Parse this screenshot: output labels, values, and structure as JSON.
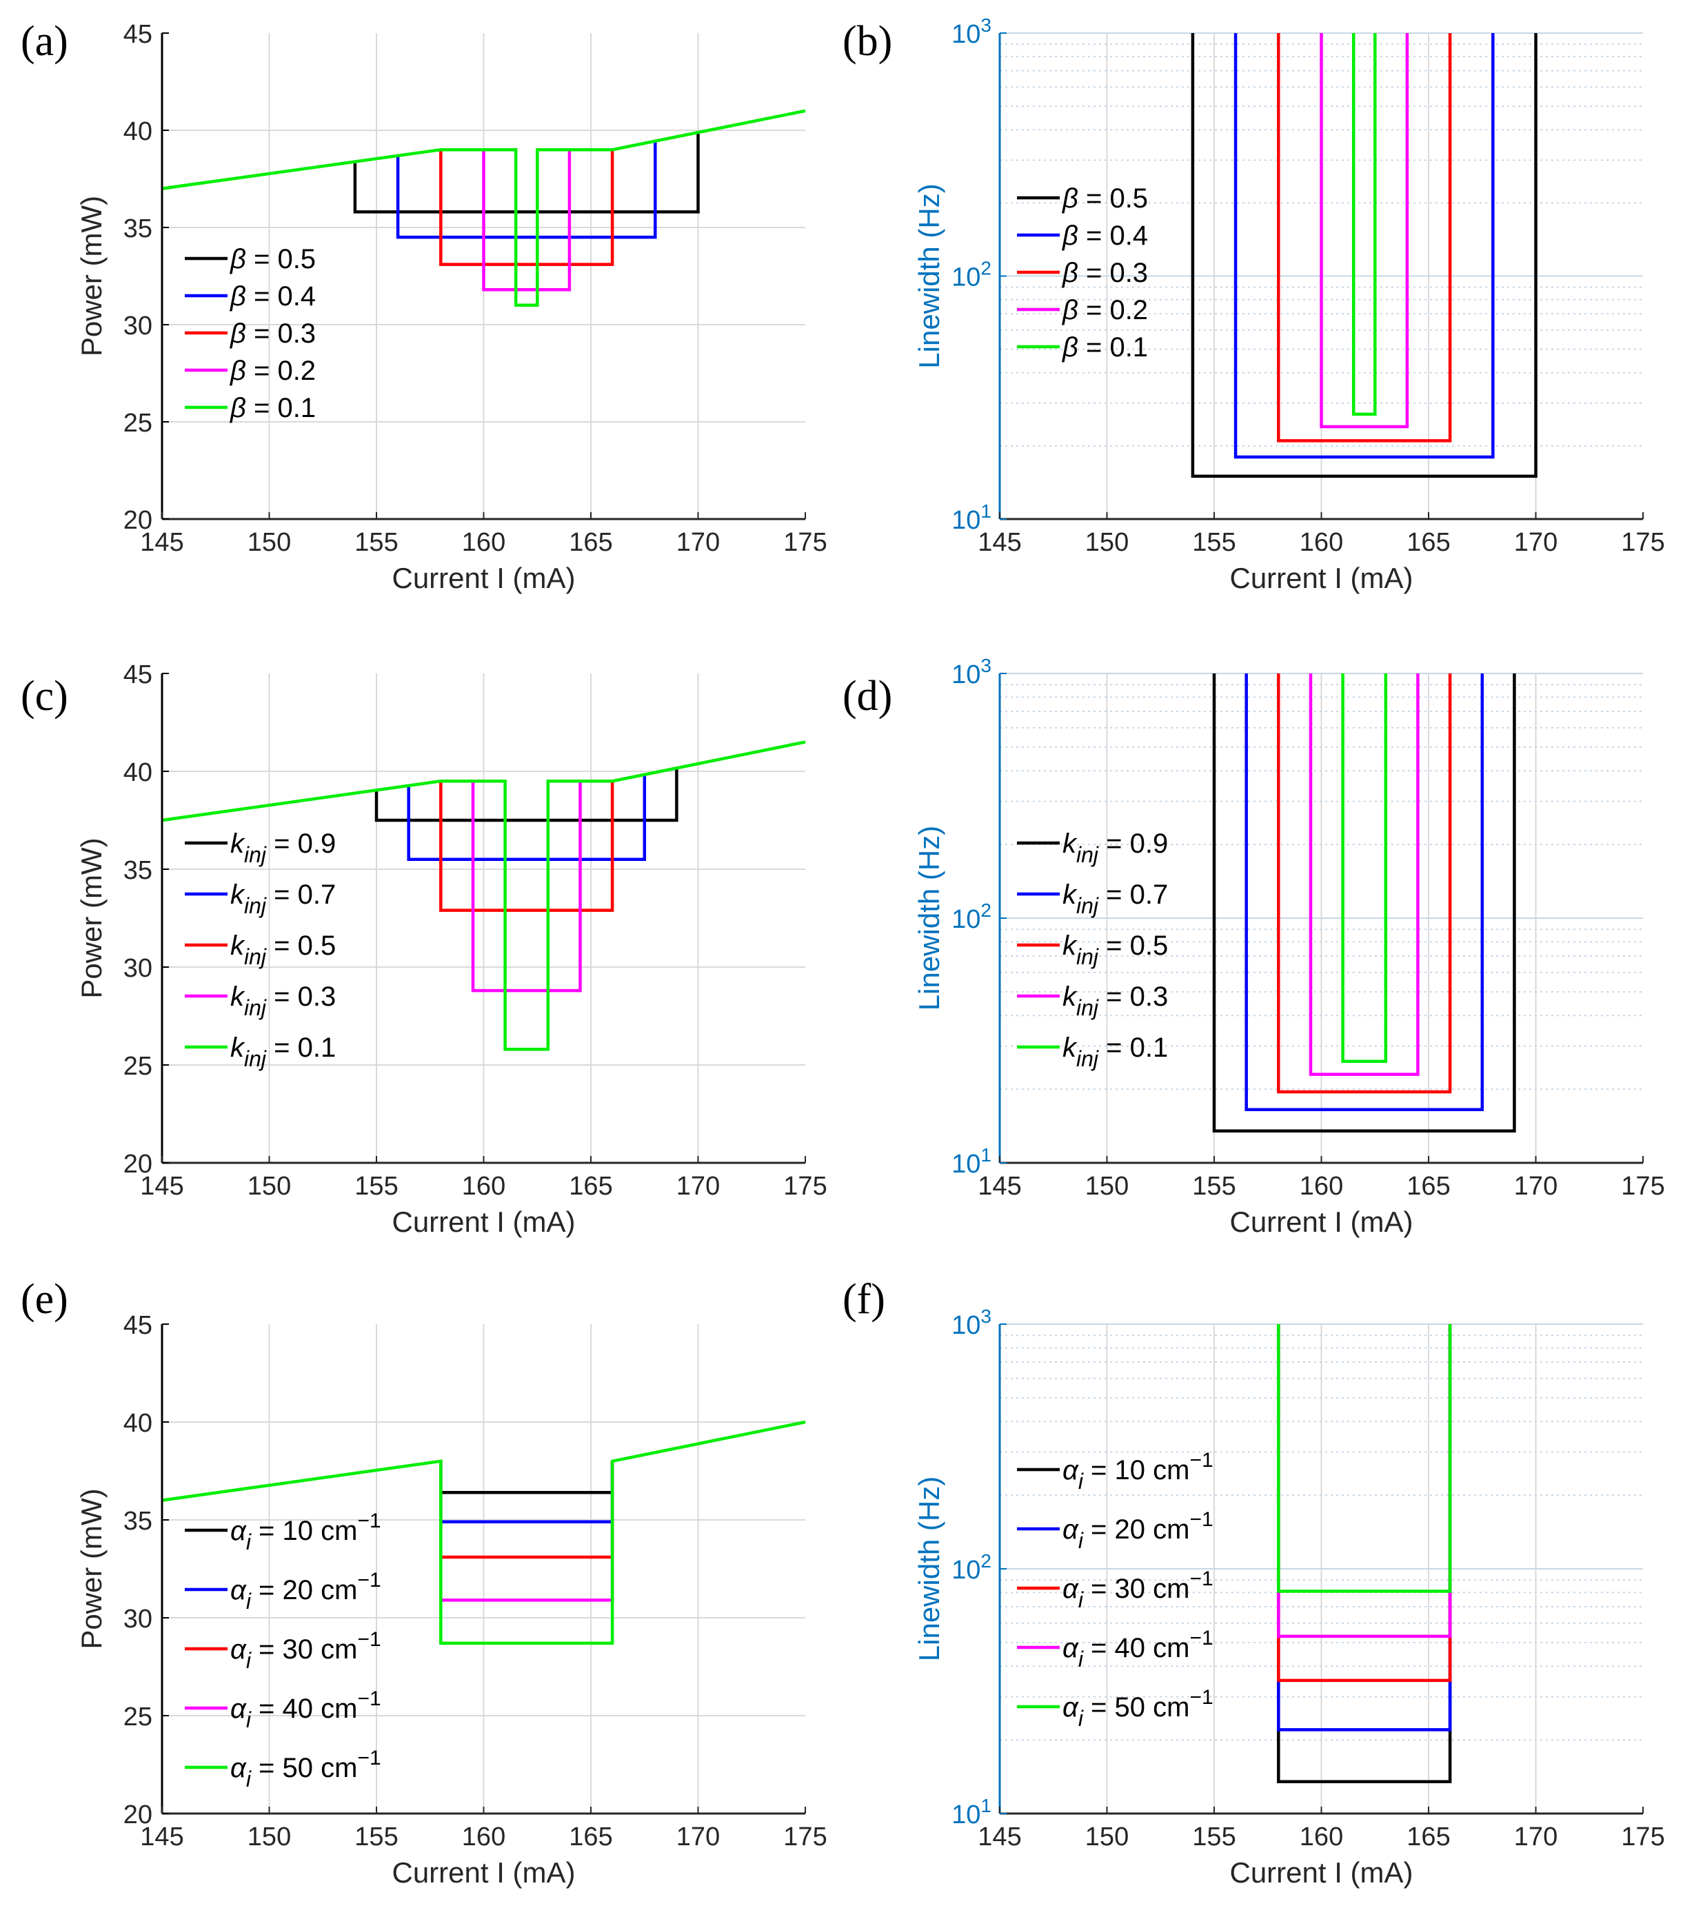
{
  "chart_data": [
    {
      "panel": "(a)",
      "type": "line",
      "xlabel": "Current I (mA)",
      "ylabel": "Power (mW)",
      "xlim": [
        145,
        175
      ],
      "ylim": [
        20,
        45
      ],
      "yscale": "linear",
      "xticks": [
        "145",
        "150",
        "155",
        "160",
        "165",
        "170",
        "175"
      ],
      "yticks": [
        "20",
        "25",
        "30",
        "35",
        "40",
        "45"
      ],
      "grid": true,
      "legend_position": "left",
      "series": [
        {
          "name": "β = 0.5",
          "sym": "β",
          "sub": "",
          "rest": " = 0.5",
          "color": "#000000",
          "x": [
            154,
            154,
            170,
            170
          ],
          "y": [
            38.3,
            35.8,
            35.8,
            39.9
          ]
        },
        {
          "name": "β = 0.4",
          "sym": "β",
          "sub": "",
          "rest": " = 0.4",
          "color": "#0000ff",
          "x": [
            156,
            156,
            168,
            168
          ],
          "y": [
            38.7,
            34.5,
            34.5,
            39.4
          ]
        },
        {
          "name": "β = 0.3",
          "sym": "β",
          "sub": "",
          "rest": " = 0.3",
          "color": "#ff0000",
          "x": [
            158,
            158,
            166,
            166
          ],
          "y": [
            39.0,
            33.1,
            33.1,
            39.0
          ]
        },
        {
          "name": "β = 0.2",
          "sym": "β",
          "sub": "",
          "rest": " = 0.2",
          "color": "#ff00ff",
          "x": [
            160,
            160,
            164,
            164
          ],
          "y": [
            39.0,
            31.8,
            31.8,
            39.0
          ]
        },
        {
          "name": "β = 0.1",
          "sym": "β",
          "sub": "",
          "rest": " = 0.1",
          "color": "#00ee00",
          "x": [
            145,
            158,
            161.5,
            161.5,
            162.5,
            162.5,
            166,
            175
          ],
          "y": [
            37.0,
            39.0,
            39.0,
            31.0,
            31.0,
            39.0,
            39.0,
            41.0
          ]
        }
      ]
    },
    {
      "panel": "(b)",
      "type": "line",
      "xlabel": "Current I (mA)",
      "ylabel": "Linewidth (Hz)",
      "xlim": [
        145,
        175
      ],
      "ylim": [
        10,
        1000
      ],
      "yscale": "log",
      "xticks": [
        "145",
        "150",
        "155",
        "160",
        "165",
        "170",
        "175"
      ],
      "yticks": [
        {
          "base": "10",
          "exp": "1"
        },
        {
          "base": "10",
          "exp": "2"
        },
        {
          "base": "10",
          "exp": "3"
        }
      ],
      "grid": true,
      "legend_position": "left",
      "series": [
        {
          "name": "β = 0.5",
          "sym": "β",
          "sub": "",
          "rest": " = 0.5",
          "color": "#000000",
          "x": [
            154,
            154,
            170,
            170
          ],
          "y": [
            1000,
            15,
            15,
            1000
          ]
        },
        {
          "name": "β = 0.4",
          "sym": "β",
          "sub": "",
          "rest": " = 0.4",
          "color": "#0000ff",
          "x": [
            156,
            156,
            168,
            168
          ],
          "y": [
            1000,
            18,
            18,
            1000
          ]
        },
        {
          "name": "β = 0.3",
          "sym": "β",
          "sub": "",
          "rest": " = 0.3",
          "color": "#ff0000",
          "x": [
            158,
            158,
            166,
            166
          ],
          "y": [
            1000,
            21,
            21,
            1000
          ]
        },
        {
          "name": "β = 0.2",
          "sym": "β",
          "sub": "",
          "rest": " = 0.2",
          "color": "#ff00ff",
          "x": [
            160,
            160,
            164,
            164
          ],
          "y": [
            1000,
            24,
            24,
            1000
          ]
        },
        {
          "name": "β = 0.1",
          "sym": "β",
          "sub": "",
          "rest": " = 0.1",
          "color": "#00ee00",
          "x": [
            161.5,
            161.5,
            162.5,
            162.5
          ],
          "y": [
            1000,
            27,
            27,
            1000
          ]
        }
      ]
    },
    {
      "panel": "(c)",
      "type": "line",
      "xlabel": "Current I (mA)",
      "ylabel": "Power (mW)",
      "xlim": [
        145,
        175
      ],
      "ylim": [
        20,
        45
      ],
      "yscale": "linear",
      "xticks": [
        "145",
        "150",
        "155",
        "160",
        "165",
        "170",
        "175"
      ],
      "yticks": [
        "20",
        "25",
        "30",
        "35",
        "40",
        "45"
      ],
      "grid": true,
      "legend_position": "left",
      "series": [
        {
          "name": "kinj = 0.9",
          "sym": "k",
          "sub": "inj",
          "rest": " = 0.9",
          "color": "#000000",
          "x": [
            155,
            155,
            169,
            169
          ],
          "y": [
            39.0,
            37.5,
            37.5,
            40.1
          ]
        },
        {
          "name": "kinj = 0.7",
          "sym": "k",
          "sub": "inj",
          "rest": " = 0.7",
          "color": "#0000ff",
          "x": [
            156.5,
            156.5,
            167.5,
            167.5
          ],
          "y": [
            39.2,
            35.5,
            35.5,
            39.8
          ]
        },
        {
          "name": "kinj = 0.5",
          "sym": "k",
          "sub": "inj",
          "rest": " = 0.5",
          "color": "#ff0000",
          "x": [
            158,
            158,
            166,
            166
          ],
          "y": [
            39.5,
            32.9,
            32.9,
            39.5
          ]
        },
        {
          "name": "kinj = 0.3",
          "sym": "k",
          "sub": "inj",
          "rest": " = 0.3",
          "color": "#ff00ff",
          "x": [
            159.5,
            159.5,
            164.5,
            164.5
          ],
          "y": [
            39.5,
            28.8,
            28.8,
            39.5
          ]
        },
        {
          "name": "kinj = 0.1",
          "sym": "k",
          "sub": "inj",
          "rest": " = 0.1",
          "color": "#00ee00",
          "x": [
            145,
            158,
            161,
            161,
            163,
            163,
            166,
            175
          ],
          "y": [
            37.5,
            39.5,
            39.5,
            25.8,
            25.8,
            39.5,
            39.5,
            41.5
          ]
        }
      ]
    },
    {
      "panel": "(d)",
      "type": "line",
      "xlabel": "Current I (mA)",
      "ylabel": "Linewidth (Hz)",
      "xlim": [
        145,
        175
      ],
      "ylim": [
        10,
        1000
      ],
      "yscale": "log",
      "xticks": [
        "145",
        "150",
        "155",
        "160",
        "165",
        "170",
        "175"
      ],
      "yticks": [
        {
          "base": "10",
          "exp": "1"
        },
        {
          "base": "10",
          "exp": "2"
        },
        {
          "base": "10",
          "exp": "3"
        }
      ],
      "grid": true,
      "legend_position": "left",
      "series": [
        {
          "name": "kinj = 0.9",
          "sym": "k",
          "sub": "inj",
          "rest": " = 0.9",
          "color": "#000000",
          "x": [
            155,
            155,
            169,
            169
          ],
          "y": [
            1000,
            13.5,
            13.5,
            1000
          ]
        },
        {
          "name": "kinj = 0.7",
          "sym": "k",
          "sub": "inj",
          "rest": " = 0.7",
          "color": "#0000ff",
          "x": [
            156.5,
            156.5,
            167.5,
            167.5
          ],
          "y": [
            1000,
            16.5,
            16.5,
            1000
          ]
        },
        {
          "name": "kinj = 0.5",
          "sym": "k",
          "sub": "inj",
          "rest": " = 0.5",
          "color": "#ff0000",
          "x": [
            158,
            158,
            166,
            166
          ],
          "y": [
            1000,
            19.5,
            19.5,
            1000
          ]
        },
        {
          "name": "kinj = 0.3",
          "sym": "k",
          "sub": "inj",
          "rest": " = 0.3",
          "color": "#ff00ff",
          "x": [
            159.5,
            159.5,
            164.5,
            164.5
          ],
          "y": [
            1000,
            23,
            23,
            1000
          ]
        },
        {
          "name": "kinj = 0.1",
          "sym": "k",
          "sub": "inj",
          "rest": " = 0.1",
          "color": "#00ee00",
          "x": [
            161,
            161,
            163,
            163
          ],
          "y": [
            1000,
            26,
            26,
            1000
          ]
        }
      ]
    },
    {
      "panel": "(e)",
      "type": "line",
      "xlabel": "Current I (mA)",
      "ylabel": "Power (mW)",
      "xlim": [
        145,
        175
      ],
      "ylim": [
        20,
        45
      ],
      "yscale": "linear",
      "xticks": [
        "145",
        "150",
        "155",
        "160",
        "165",
        "170",
        "175"
      ],
      "yticks": [
        "20",
        "25",
        "30",
        "35",
        "40",
        "45"
      ],
      "grid": true,
      "legend_position": "left",
      "series": [
        {
          "name": "αi = 10 cm−1",
          "sym": "α",
          "sub": "i",
          "rest": " = 10 cm",
          "sup": "−1",
          "color": "#000000",
          "x": [
            158,
            158,
            166,
            166
          ],
          "y": [
            38.0,
            36.4,
            36.4,
            38.0
          ]
        },
        {
          "name": "αi = 20 cm−1",
          "sym": "α",
          "sub": "i",
          "rest": " = 20 cm",
          "sup": "−1",
          "color": "#0000ff",
          "x": [
            158,
            158,
            166,
            166
          ],
          "y": [
            38.0,
            34.9,
            34.9,
            38.0
          ]
        },
        {
          "name": "αi = 30 cm−1",
          "sym": "α",
          "sub": "i",
          "rest": " = 30 cm",
          "sup": "−1",
          "color": "#ff0000",
          "x": [
            158,
            158,
            166,
            166
          ],
          "y": [
            38.0,
            33.1,
            33.1,
            38.0
          ]
        },
        {
          "name": "αi = 40 cm−1",
          "sym": "α",
          "sub": "i",
          "rest": " = 40 cm",
          "sup": "−1",
          "color": "#ff00ff",
          "x": [
            158,
            158,
            166,
            166
          ],
          "y": [
            38.0,
            30.9,
            30.9,
            38.0
          ]
        },
        {
          "name": "αi = 50 cm−1",
          "sym": "α",
          "sub": "i",
          "rest": " = 50 cm",
          "sup": "−1",
          "color": "#00ee00",
          "x": [
            145,
            158,
            158,
            166,
            166,
            175
          ],
          "y": [
            36.0,
            38.0,
            28.7,
            28.7,
            38.0,
            40.0
          ]
        }
      ]
    },
    {
      "panel": "(f)",
      "type": "line",
      "xlabel": "Current I (mA)",
      "ylabel": "Linewidth (Hz)",
      "xlim": [
        145,
        175
      ],
      "ylim": [
        10,
        1000
      ],
      "yscale": "log",
      "xticks": [
        "145",
        "150",
        "155",
        "160",
        "165",
        "170",
        "175"
      ],
      "yticks": [
        {
          "base": "10",
          "exp": "1"
        },
        {
          "base": "10",
          "exp": "2"
        },
        {
          "base": "10",
          "exp": "3"
        }
      ],
      "grid": true,
      "legend_position": "left",
      "series": [
        {
          "name": "αi = 10 cm−1",
          "sym": "α",
          "sub": "i",
          "rest": " = 10 cm",
          "sup": "−1",
          "color": "#000000",
          "x": [
            158,
            158,
            166,
            166
          ],
          "y": [
            1000,
            13.5,
            13.5,
            1000
          ]
        },
        {
          "name": "αi = 20 cm−1",
          "sym": "α",
          "sub": "i",
          "rest": " = 20 cm",
          "sup": "−1",
          "color": "#0000ff",
          "x": [
            158,
            158,
            166,
            166
          ],
          "y": [
            1000,
            22,
            22,
            1000
          ]
        },
        {
          "name": "αi = 30 cm−1",
          "sym": "α",
          "sub": "i",
          "rest": " = 30 cm",
          "sup": "−1",
          "color": "#ff0000",
          "x": [
            158,
            158,
            166,
            166
          ],
          "y": [
            1000,
            35,
            35,
            1000
          ]
        },
        {
          "name": "αi = 40 cm−1",
          "sym": "α",
          "sub": "i",
          "rest": " = 40 cm",
          "sup": "−1",
          "color": "#ff00ff",
          "x": [
            158,
            158,
            166,
            166
          ],
          "y": [
            1000,
            53,
            53,
            1000
          ]
        },
        {
          "name": "αi = 50 cm−1",
          "sym": "α",
          "sub": "i",
          "rest": " = 50 cm",
          "sup": "−1",
          "color": "#00ee00",
          "x": [
            158,
            158,
            166,
            166
          ],
          "y": [
            1000,
            81,
            81,
            1000
          ]
        }
      ]
    }
  ],
  "colors": {
    "axis_black": "#000000",
    "axis_blue": "#0072bd",
    "grid": "#d9d9d9"
  }
}
